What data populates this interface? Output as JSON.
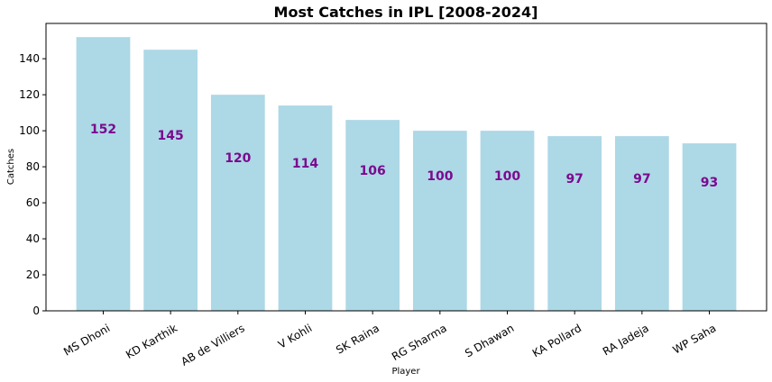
{
  "chart_data": {
    "type": "bar",
    "title": "Most Catches in IPL [2008-2024]",
    "xlabel": "Player",
    "ylabel": "Catches",
    "categories": [
      "MS Dhoni",
      "KD Karthik",
      "AB de Villiers",
      "V Kohli",
      "SK Raina",
      "RG Sharma",
      "S Dhawan",
      "KA Pollard",
      "RA Jadeja",
      "WP Saha"
    ],
    "values": [
      152,
      145,
      120,
      114,
      106,
      100,
      100,
      97,
      97,
      93
    ],
    "data_labels": [
      "152",
      "145",
      "120",
      "114",
      "106",
      "100",
      "100",
      "97",
      "97",
      "93"
    ],
    "ylim": [
      0,
      159.6
    ],
    "yticks": [
      0,
      20,
      40,
      60,
      80,
      100,
      120,
      140
    ],
    "ytick_labels": [
      "0",
      "20",
      "40",
      "60",
      "80",
      "100",
      "120",
      "140"
    ],
    "grid": false,
    "legend": "none",
    "colors": {
      "bar": "#add8e6",
      "data_label": "#7b0a8f"
    }
  }
}
